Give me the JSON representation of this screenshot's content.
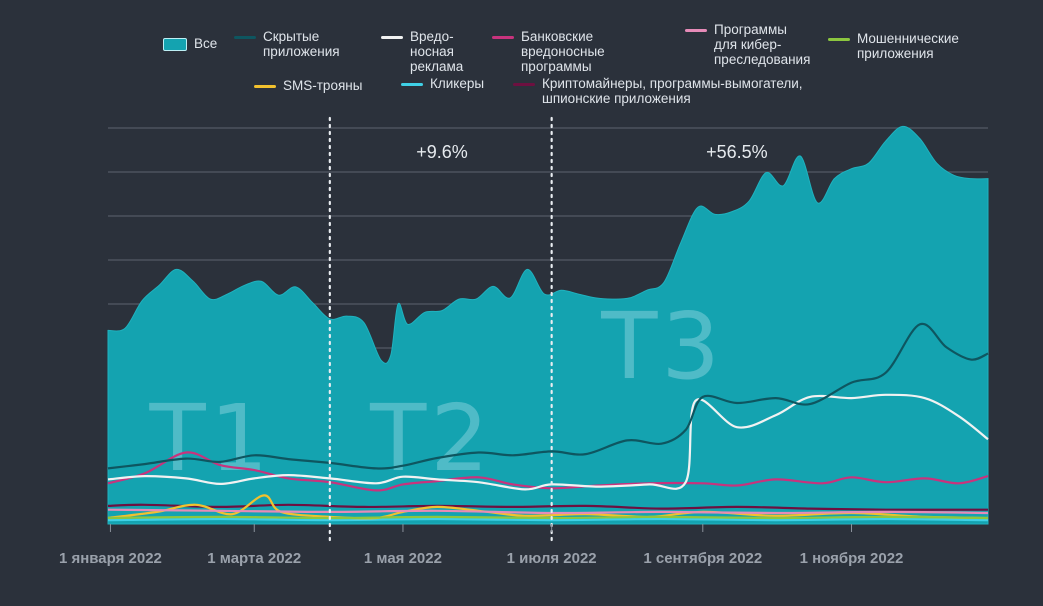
{
  "chart_data": {
    "type": "area",
    "title": "",
    "xlabel": "",
    "ylabel": "",
    "y_axis_labels_shown": false,
    "grid": "horizontal",
    "legend_placement": "top",
    "x_domain": [
      "2021-12-31",
      "2022-12-27"
    ],
    "x_ticks": [
      {
        "date": "2022-01-01",
        "label": "1 января 2022"
      },
      {
        "date": "2022-03-01",
        "label": "1 марта 2022"
      },
      {
        "date": "2022-05-01",
        "label": "1 мая 2022"
      },
      {
        "date": "2022-07-01",
        "label": "1 июля 2022"
      },
      {
        "date": "2022-09-01",
        "label": "1 сентября 2022"
      },
      {
        "date": "2022-11-01",
        "label": "1 ноября 2022"
      }
    ],
    "quarter_dividers": [
      "2022-04-01",
      "2022-07-01"
    ],
    "quarters": [
      {
        "label": "T1",
        "start": "2022-01-01",
        "end": "2022-03-31"
      },
      {
        "label": "T2",
        "start": "2022-04-01",
        "end": "2022-06-30"
      },
      {
        "label": "T3",
        "start": "2022-07-01",
        "end": "2022-09-30"
      }
    ],
    "annotations": [
      {
        "text": "+9.6%",
        "date": "2022-05-17"
      },
      {
        "text": "+56.5%",
        "date": "2022-09-15"
      }
    ],
    "series": [
      {
        "name": "Все",
        "legend": "Все",
        "color": "#14a3b0",
        "style": "area",
        "points": [
          [
            "2021-12-31",
            35.2
          ],
          [
            "2022-01-07",
            35.6
          ],
          [
            "2022-01-14",
            40.6
          ],
          [
            "2022-01-21",
            43.4
          ],
          [
            "2022-01-28",
            46.3
          ],
          [
            "2022-02-04",
            44.1
          ],
          [
            "2022-02-11",
            40.9
          ],
          [
            "2022-02-18",
            41.8
          ],
          [
            "2022-02-25",
            43.4
          ],
          [
            "2022-03-04",
            44.1
          ],
          [
            "2022-03-11",
            41.6
          ],
          [
            "2022-03-18",
            43.1
          ],
          [
            "2022-03-25",
            40.2
          ],
          [
            "2022-04-01",
            37.3
          ],
          [
            "2022-04-08",
            37.8
          ],
          [
            "2022-04-15",
            36.6
          ],
          [
            "2022-04-22",
            29.8
          ],
          [
            "2022-04-26",
            30.7
          ],
          [
            "2022-04-29",
            40.0
          ],
          [
            "2022-05-03",
            36.3
          ],
          [
            "2022-05-10",
            38.5
          ],
          [
            "2022-05-17",
            38.8
          ],
          [
            "2022-05-24",
            40.9
          ],
          [
            "2022-05-31",
            40.9
          ],
          [
            "2022-06-07",
            43.2
          ],
          [
            "2022-06-14",
            41.1
          ],
          [
            "2022-06-21",
            46.3
          ],
          [
            "2022-06-28",
            41.8
          ],
          [
            "2022-07-05",
            42.5
          ],
          [
            "2022-07-12",
            41.8
          ],
          [
            "2022-07-19",
            41.1
          ],
          [
            "2022-07-26",
            40.9
          ],
          [
            "2022-08-02",
            41.1
          ],
          [
            "2022-08-09",
            42.5
          ],
          [
            "2022-08-16",
            43.9
          ],
          [
            "2022-08-23",
            51.2
          ],
          [
            "2022-08-30",
            57.6
          ],
          [
            "2022-09-06",
            56.3
          ],
          [
            "2022-09-13",
            56.8
          ],
          [
            "2022-09-20",
            58.7
          ],
          [
            "2022-09-27",
            63.9
          ],
          [
            "2022-10-04",
            61.5
          ],
          [
            "2022-10-11",
            66.9
          ],
          [
            "2022-10-18",
            58.4
          ],
          [
            "2022-10-25",
            62.8
          ],
          [
            "2022-11-01",
            64.6
          ],
          [
            "2022-11-08",
            65.6
          ],
          [
            "2022-11-15",
            69.6
          ],
          [
            "2022-11-22",
            72.3
          ],
          [
            "2022-11-29",
            70.1
          ],
          [
            "2022-12-06",
            65.6
          ],
          [
            "2022-12-13",
            63.4
          ],
          [
            "2022-12-20",
            62.8
          ],
          [
            "2022-12-27",
            62.8
          ]
        ]
      },
      {
        "name": "Скрытые приложения",
        "legend": "Скрытые\nприложения",
        "color": "#0e5660",
        "style": "line",
        "points": [
          [
            "2021-12-31",
            10.1
          ],
          [
            "2022-01-15",
            10.9
          ],
          [
            "2022-02-01",
            11.9
          ],
          [
            "2022-02-15",
            11.3
          ],
          [
            "2022-03-01",
            12.5
          ],
          [
            "2022-03-15",
            11.8
          ],
          [
            "2022-04-01",
            11.1
          ],
          [
            "2022-04-20",
            10.1
          ],
          [
            "2022-05-01",
            10.6
          ],
          [
            "2022-05-15",
            12.0
          ],
          [
            "2022-06-01",
            13.0
          ],
          [
            "2022-06-15",
            12.5
          ],
          [
            "2022-07-01",
            13.2
          ],
          [
            "2022-07-15",
            12.7
          ],
          [
            "2022-08-01",
            15.2
          ],
          [
            "2022-08-15",
            14.6
          ],
          [
            "2022-08-25",
            17.1
          ],
          [
            "2022-09-01",
            23.1
          ],
          [
            "2022-09-15",
            22.0
          ],
          [
            "2022-10-01",
            22.9
          ],
          [
            "2022-10-15",
            21.8
          ],
          [
            "2022-11-01",
            25.7
          ],
          [
            "2022-11-15",
            27.5
          ],
          [
            "2022-11-29",
            36.3
          ],
          [
            "2022-12-10",
            32.1
          ],
          [
            "2022-12-20",
            29.9
          ],
          [
            "2022-12-27",
            31.0
          ]
        ]
      },
      {
        "name": "Вредоносная реклама",
        "legend": "Вредо-\nносная\nреклама",
        "color": "#f1f2f2",
        "style": "line",
        "points": [
          [
            "2021-12-31",
            8.1
          ],
          [
            "2022-01-15",
            8.7
          ],
          [
            "2022-02-01",
            8.3
          ],
          [
            "2022-02-15",
            7.3
          ],
          [
            "2022-03-01",
            8.3
          ],
          [
            "2022-03-15",
            8.9
          ],
          [
            "2022-04-01",
            8.3
          ],
          [
            "2022-04-20",
            7.4
          ],
          [
            "2022-05-01",
            8.6
          ],
          [
            "2022-05-15",
            8.1
          ],
          [
            "2022-06-01",
            7.6
          ],
          [
            "2022-06-20",
            6.3
          ],
          [
            "2022-07-01",
            7.2
          ],
          [
            "2022-07-20",
            6.8
          ],
          [
            "2022-08-10",
            7.2
          ],
          [
            "2022-08-25",
            7.6
          ],
          [
            "2022-08-29",
            22.4
          ],
          [
            "2022-09-15",
            17.6
          ],
          [
            "2022-10-01",
            19.8
          ],
          [
            "2022-10-15",
            23.1
          ],
          [
            "2022-11-01",
            22.9
          ],
          [
            "2022-11-15",
            23.5
          ],
          [
            "2022-12-01",
            22.9
          ],
          [
            "2022-12-15",
            19.6
          ],
          [
            "2022-12-27",
            15.4
          ]
        ]
      },
      {
        "name": "Банковские вредоносные программы",
        "legend": "Банковские\nвредоносные\nпрограммы",
        "color": "#c8337d",
        "style": "line",
        "points": [
          [
            "2021-12-31",
            7.4
          ],
          [
            "2022-01-15",
            9.2
          ],
          [
            "2022-02-01",
            13.0
          ],
          [
            "2022-02-15",
            10.7
          ],
          [
            "2022-03-01",
            9.8
          ],
          [
            "2022-03-15",
            8.3
          ],
          [
            "2022-04-01",
            7.6
          ],
          [
            "2022-04-20",
            6.1
          ],
          [
            "2022-05-01",
            7.2
          ],
          [
            "2022-05-15",
            7.8
          ],
          [
            "2022-06-01",
            8.5
          ],
          [
            "2022-06-15",
            7.2
          ],
          [
            "2022-07-01",
            6.5
          ],
          [
            "2022-07-20",
            7.0
          ],
          [
            "2022-08-10",
            7.4
          ],
          [
            "2022-09-01",
            7.4
          ],
          [
            "2022-09-15",
            7.0
          ],
          [
            "2022-10-01",
            8.1
          ],
          [
            "2022-10-20",
            7.4
          ],
          [
            "2022-11-01",
            8.5
          ],
          [
            "2022-11-15",
            7.6
          ],
          [
            "2022-12-01",
            8.3
          ],
          [
            "2022-12-15",
            7.4
          ],
          [
            "2022-12-27",
            8.7
          ]
        ]
      },
      {
        "name": "Программы для кибер-преследования",
        "legend": "Программы\nдля кибер-\nпреследования",
        "color": "#e68bb8",
        "style": "line",
        "points": [
          [
            "2021-12-31",
            2.6
          ],
          [
            "2022-02-15",
            2.4
          ],
          [
            "2022-04-01",
            2.2
          ],
          [
            "2022-05-15",
            2.4
          ],
          [
            "2022-07-01",
            2.0
          ],
          [
            "2022-08-15",
            2.2
          ],
          [
            "2022-10-01",
            2.0
          ],
          [
            "2022-11-15",
            2.2
          ],
          [
            "2022-12-27",
            2.0
          ]
        ]
      },
      {
        "name": "Мошеннические приложения",
        "legend": "Мошеннические\nприложения",
        "color": "#8cc63f",
        "style": "line",
        "points": [
          [
            "2021-12-31",
            1.1
          ],
          [
            "2022-02-15",
            1.3
          ],
          [
            "2022-04-01",
            1.1
          ],
          [
            "2022-05-15",
            1.3
          ],
          [
            "2022-07-01",
            1.1
          ],
          [
            "2022-08-15",
            1.3
          ],
          [
            "2022-10-01",
            1.1
          ],
          [
            "2022-11-15",
            1.3
          ],
          [
            "2022-12-27",
            1.1
          ]
        ]
      },
      {
        "name": "SMS-трояны",
        "legend": "SMS-трояны",
        "color": "#f2c12e",
        "style": "line",
        "points": [
          [
            "2021-12-31",
            1.1
          ],
          [
            "2022-01-20",
            2.2
          ],
          [
            "2022-02-05",
            3.5
          ],
          [
            "2022-02-20",
            1.8
          ],
          [
            "2022-03-05",
            5.2
          ],
          [
            "2022-03-12",
            2.2
          ],
          [
            "2022-04-01",
            1.3
          ],
          [
            "2022-04-20",
            1.1
          ],
          [
            "2022-05-01",
            2.2
          ],
          [
            "2022-05-15",
            3.1
          ],
          [
            "2022-06-01",
            2.4
          ],
          [
            "2022-06-20",
            1.5
          ],
          [
            "2022-07-15",
            1.8
          ],
          [
            "2022-08-10",
            1.3
          ],
          [
            "2022-09-01",
            2.2
          ],
          [
            "2022-10-01",
            1.5
          ],
          [
            "2022-11-01",
            2.0
          ],
          [
            "2022-12-01",
            1.3
          ],
          [
            "2022-12-27",
            1.1
          ]
        ]
      },
      {
        "name": "Кликеры",
        "legend": "Кликеры",
        "color": "#3fd0e6",
        "style": "line",
        "points": [
          [
            "2021-12-31",
            0.7
          ],
          [
            "2022-02-15",
            0.9
          ],
          [
            "2022-04-01",
            0.7
          ],
          [
            "2022-05-15",
            0.9
          ],
          [
            "2022-07-01",
            0.7
          ],
          [
            "2022-08-15",
            0.9
          ],
          [
            "2022-10-01",
            0.7
          ],
          [
            "2022-11-15",
            0.9
          ],
          [
            "2022-12-27",
            0.7
          ]
        ]
      },
      {
        "name": "Криптомайнеры, программы-вымогатели, шпионские приложения",
        "legend": "Криптомайнеры, программы-вымогатели,\nшпионские приложения",
        "color": "#6d1040",
        "style": "line",
        "points": [
          [
            "2021-12-31",
            3.3
          ],
          [
            "2022-01-15",
            3.5
          ],
          [
            "2022-02-15",
            3.1
          ],
          [
            "2022-03-15",
            3.5
          ],
          [
            "2022-04-15",
            3.1
          ],
          [
            "2022-05-15",
            3.3
          ],
          [
            "2022-06-15",
            3.1
          ],
          [
            "2022-07-15",
            3.3
          ],
          [
            "2022-08-15",
            2.8
          ],
          [
            "2022-09-15",
            3.1
          ],
          [
            "2022-10-15",
            2.8
          ],
          [
            "2022-11-15",
            2.6
          ],
          [
            "2022-12-27",
            2.6
          ]
        ]
      }
    ]
  }
}
